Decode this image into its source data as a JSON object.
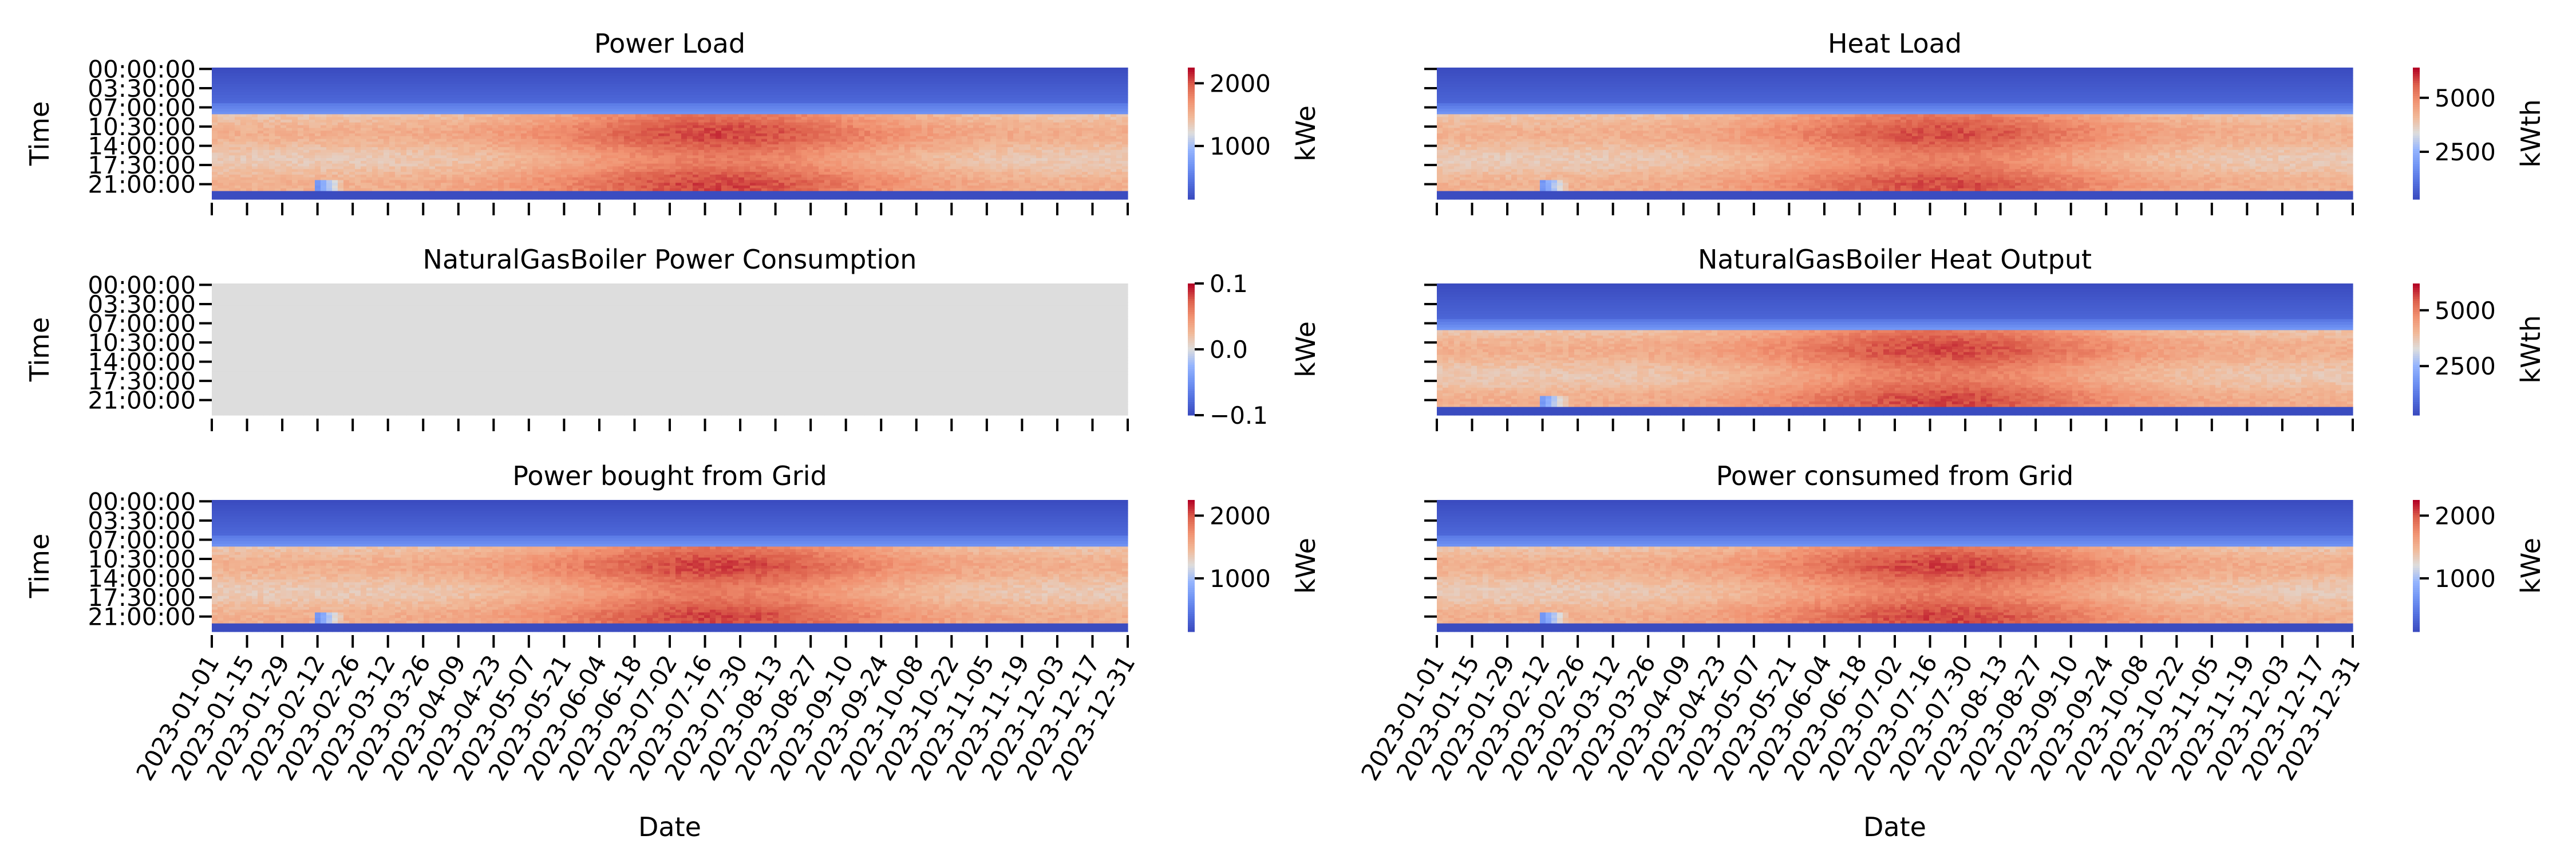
{
  "chart_data": [
    {
      "type": "heatmap",
      "title": "Power Load",
      "xlabel": "",
      "ylabel": "Time",
      "y_ticks": [
        "00:00:00",
        "03:30:00",
        "07:00:00",
        "10:30:00",
        "14:00:00",
        "17:30:00",
        "21:00:00"
      ],
      "x_ticks": [],
      "colorbar": {
        "label": "kWe",
        "ticks": [
          2000,
          1000
        ],
        "range": [
          150,
          2250
        ]
      },
      "colormap": "coolwarm",
      "pattern": {
        "night_low": 150,
        "night_high": 500,
        "day": 1750,
        "transition_low": 700,
        "jan_shift_day": 52,
        "peak_months": [
          5,
          9
        ]
      }
    },
    {
      "type": "heatmap",
      "title": "Heat Load",
      "xlabel": "",
      "ylabel": "",
      "y_ticks": [],
      "x_ticks": [],
      "colorbar": {
        "label": "kWth",
        "ticks": [
          5000,
          2500
        ],
        "range": [
          300,
          6400
        ]
      },
      "colormap": "coolwarm",
      "pattern": {
        "night_low": 300,
        "night_high": 1200,
        "day": 4900,
        "transition_low": 2000,
        "jan_shift_day": 52,
        "peak_months": [
          5,
          9
        ]
      }
    },
    {
      "type": "heatmap",
      "title": "NaturalGasBoiler Power Consumption",
      "xlabel": "",
      "ylabel": "Time",
      "y_ticks": [
        "00:00:00",
        "03:30:00",
        "07:00:00",
        "10:30:00",
        "14:00:00",
        "17:30:00",
        "21:00:00"
      ],
      "x_ticks": [],
      "colorbar": {
        "label": "kWe",
        "ticks": [
          "0.1",
          "0.0",
          "−0.1"
        ],
        "range": [
          -0.1,
          0.1
        ]
      },
      "colormap": "coolwarm",
      "constant_value": 0.0
    },
    {
      "type": "heatmap",
      "title": "NaturalGasBoiler Heat Output",
      "xlabel": "",
      "ylabel": "",
      "y_ticks": [],
      "x_ticks": [],
      "colorbar": {
        "label": "kWth",
        "ticks": [
          5000,
          2500
        ],
        "range": [
          300,
          6200
        ]
      },
      "colormap": "coolwarm",
      "pattern": {
        "night_low": 300,
        "night_high": 1200,
        "day": 4800,
        "transition_low": 2000,
        "jan_shift_day": 52,
        "peak_months": [
          5,
          9
        ]
      }
    },
    {
      "type": "heatmap",
      "title": "Power bought from Grid",
      "xlabel": "Date",
      "ylabel": "Time",
      "y_ticks": [
        "00:00:00",
        "03:30:00",
        "07:00:00",
        "10:30:00",
        "14:00:00",
        "17:30:00",
        "21:00:00"
      ],
      "x_ticks": [
        "2023-01-01",
        "2023-01-15",
        "2023-01-29",
        "2023-02-12",
        "2023-02-26",
        "2023-03-12",
        "2023-03-26",
        "2023-04-09",
        "2023-04-23",
        "2023-05-07",
        "2023-05-21",
        "2023-06-04",
        "2023-06-18",
        "2023-07-02",
        "2023-07-16",
        "2023-07-30",
        "2023-08-13",
        "2023-08-27",
        "2023-09-10",
        "2023-09-24",
        "2023-10-08",
        "2023-10-22",
        "2023-11-05",
        "2023-11-19",
        "2023-12-03",
        "2023-12-17",
        "2023-12-31"
      ],
      "colorbar": {
        "label": "kWe",
        "ticks": [
          2000,
          1000
        ],
        "range": [
          150,
          2250
        ]
      },
      "colormap": "coolwarm",
      "pattern": {
        "night_low": 150,
        "night_high": 500,
        "day": 1750,
        "transition_low": 700,
        "jan_shift_day": 52,
        "peak_months": [
          5,
          9
        ]
      }
    },
    {
      "type": "heatmap",
      "title": "Power consumed from Grid",
      "xlabel": "Date",
      "ylabel": "",
      "y_ticks": [],
      "x_ticks": [
        "2023-01-01",
        "2023-01-15",
        "2023-01-29",
        "2023-02-12",
        "2023-02-26",
        "2023-03-12",
        "2023-03-26",
        "2023-04-09",
        "2023-04-23",
        "2023-05-07",
        "2023-05-21",
        "2023-06-04",
        "2023-06-18",
        "2023-07-02",
        "2023-07-16",
        "2023-07-30",
        "2023-08-13",
        "2023-08-27",
        "2023-09-10",
        "2023-09-24",
        "2023-10-08",
        "2023-10-22",
        "2023-11-05",
        "2023-11-19",
        "2023-12-03",
        "2023-12-17",
        "2023-12-31"
      ],
      "colorbar": {
        "label": "kWe",
        "ticks": [
          2000,
          1000
        ],
        "range": [
          150,
          2250
        ]
      },
      "colormap": "coolwarm",
      "pattern": {
        "night_low": 150,
        "night_high": 500,
        "day": 1750,
        "transition_low": 700,
        "jan_shift_day": 52,
        "peak_months": [
          5,
          9
        ]
      }
    }
  ]
}
